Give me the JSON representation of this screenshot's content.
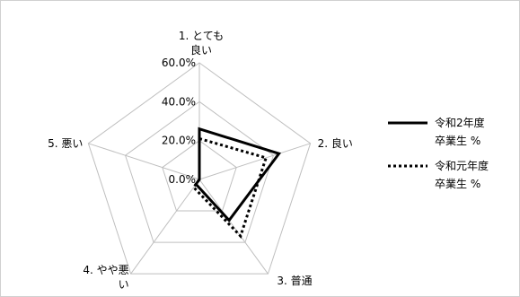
{
  "chart_data": {
    "type": "radar",
    "categories": [
      "1. とても良い",
      "2. 良い",
      "3. 普通",
      "4. やや悪い",
      "5. 悪い"
    ],
    "category_lines": [
      [
        "1. とても",
        "良い"
      ],
      [
        "2. 良い"
      ],
      [
        "3. 普通"
      ],
      [
        "4. やや悪",
        "い"
      ],
      [
        "5. 悪い"
      ]
    ],
    "rlim": [
      0,
      60
    ],
    "ticks": [
      "0.0%",
      "20.0%",
      "40.0%",
      "60.0%"
    ],
    "tick_values": [
      0,
      20,
      40,
      60
    ],
    "series": [
      {
        "name": "令和2年度卒業生 %",
        "legend_lines": [
          "令和2年度",
          "卒業生 %"
        ],
        "values": [
          26,
          43,
          26,
          3,
          0
        ],
        "style": "solid",
        "color": "#000000"
      },
      {
        "name": "令和元年度卒業生 %",
        "legend_lines": [
          "令和元年度",
          "卒業生 %"
        ],
        "values": [
          21,
          36,
          36,
          5,
          0
        ],
        "style": "dotted",
        "color": "#000000"
      }
    ],
    "grid": true,
    "legend_position": "right"
  }
}
